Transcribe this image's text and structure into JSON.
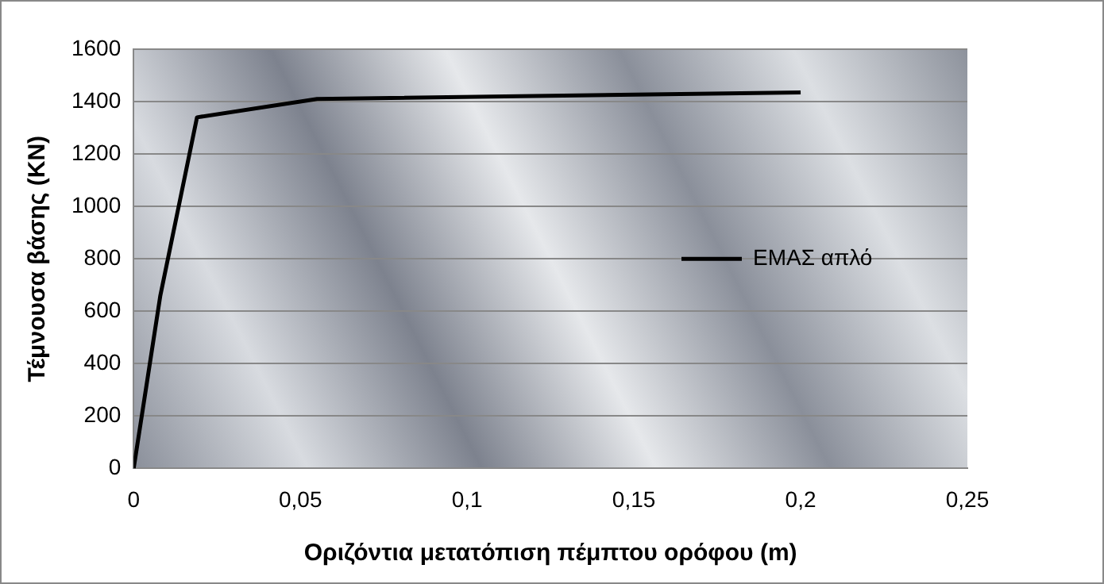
{
  "chart_data": {
    "type": "line",
    "xlabel": "Οριζόντια μετατόπιση πέμπτου ορόφου (m)",
    "ylabel": "Τέμνουσα βάσης (KN)",
    "series": [
      {
        "name": "ΕΜΑΣ απλό",
        "color": "#000000",
        "x": [
          0,
          0.008,
          0.019,
          0.055,
          0.2
        ],
        "values": [
          0,
          660,
          1340,
          1410,
          1435
        ]
      }
    ],
    "xlim": [
      0,
      0.25
    ],
    "xticks": [
      0,
      {
        "value": 0.05,
        "label": "0,05"
      },
      {
        "value": 0.1,
        "label": "0,1"
      },
      {
        "value": 0.15,
        "label": "0,15"
      },
      {
        "value": 0.2,
        "label": "0,2"
      },
      {
        "value": 0.25,
        "label": "0,25"
      }
    ],
    "ylim": [
      0,
      1600
    ],
    "yticks": [
      0,
      200,
      400,
      600,
      800,
      1000,
      1200,
      1400,
      1600
    ],
    "grid": "y",
    "legend": "right",
    "marker": "none",
    "line_style": "solid"
  }
}
